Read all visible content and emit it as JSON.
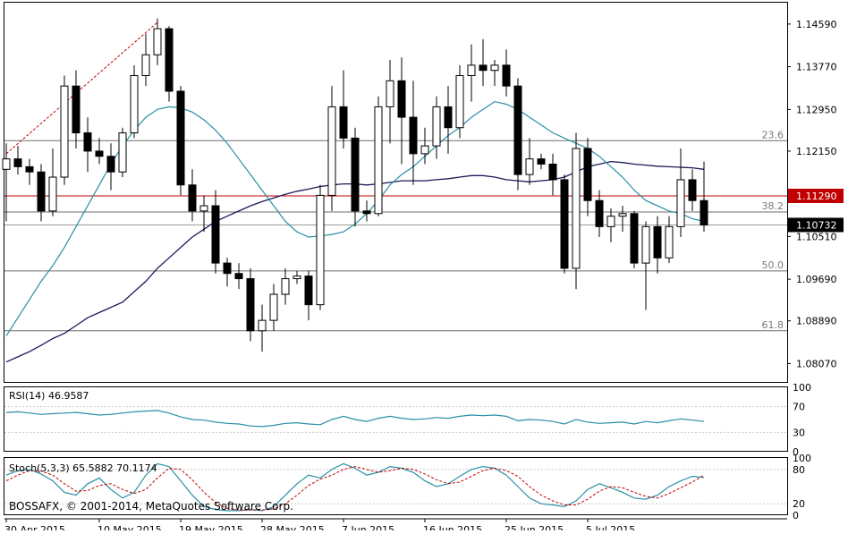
{
  "colors": {
    "background": "#ffffff",
    "frame": "#000000",
    "grid": "#c8c8c8",
    "candle_body": "#000000",
    "candle_bull_fill": "#ffffff",
    "ma_fast": "#2a8fa6",
    "ma_slow": "#1a1a5a",
    "fib_line": "#6d6d6d",
    "price_line": "#c00000",
    "price_box": "#c00000",
    "current_box": "#000000",
    "rsi_line": "#2a8fa6",
    "stoch_main": "#2a8fa6",
    "stoch_signal": "#c00000",
    "trend_line": "#c00000"
  },
  "chart_data": [
    {
      "type": "candlestick",
      "panel": "main",
      "symbol_pair_note": "",
      "ylim": [
        1.077,
        1.15
      ],
      "y_ticks": [
        "1.14590",
        "1.13770",
        "1.12950",
        "1.12150",
        "1.11290",
        "1.10732",
        "1.10510",
        "1.09690",
        "1.08890",
        "1.08070"
      ],
      "y_tick_values": [
        1.1459,
        1.1377,
        1.1295,
        1.1215,
        1.1051,
        1.0969,
        1.0889,
        1.0807
      ],
      "x_ticks": [
        "30 Apr 2015",
        "10 May 2015",
        "19 May 2015",
        "28 May 2015",
        "7 Jun 2015",
        "16 Jun 2015",
        "25 Jun 2015",
        "5 Jul 2015"
      ],
      "x_tick_index": [
        0,
        8,
        15,
        22,
        29,
        36,
        43,
        50
      ],
      "candles": [
        [
          1.118,
          1.123,
          1.108,
          1.12
        ],
        [
          1.12,
          1.1225,
          1.117,
          1.1185
        ],
        [
          1.1185,
          1.12,
          1.115,
          1.1175
        ],
        [
          1.1175,
          1.119,
          1.108,
          1.11
        ],
        [
          1.11,
          1.122,
          1.109,
          1.1165
        ],
        [
          1.1165,
          1.136,
          1.115,
          1.134
        ],
        [
          1.134,
          1.137,
          1.122,
          1.125
        ],
        [
          1.125,
          1.128,
          1.1175,
          1.1215
        ],
        [
          1.1215,
          1.124,
          1.119,
          1.1205
        ],
        [
          1.1205,
          1.123,
          1.114,
          1.1175
        ],
        [
          1.1175,
          1.126,
          1.1165,
          1.125
        ],
        [
          1.125,
          1.138,
          1.124,
          1.136
        ],
        [
          1.136,
          1.144,
          1.134,
          1.14
        ],
        [
          1.14,
          1.147,
          1.138,
          1.145
        ],
        [
          1.145,
          1.1455,
          1.131,
          1.133
        ],
        [
          1.133,
          1.134,
          1.113,
          1.115
        ],
        [
          1.115,
          1.118,
          1.108,
          1.11
        ],
        [
          1.11,
          1.113,
          1.106,
          1.111
        ],
        [
          1.111,
          1.114,
          1.098,
          1.1
        ],
        [
          1.1,
          1.101,
          1.0955,
          1.098
        ],
        [
          1.098,
          1.1,
          1.095,
          1.097
        ],
        [
          1.097,
          1.099,
          1.085,
          1.087
        ],
        [
          1.087,
          1.092,
          1.083,
          1.089
        ],
        [
          1.089,
          1.096,
          1.087,
          1.094
        ],
        [
          1.094,
          1.099,
          1.092,
          1.097
        ],
        [
          1.097,
          1.0985,
          1.096,
          1.0975
        ],
        [
          1.0975,
          1.0985,
          1.089,
          1.092
        ],
        [
          1.092,
          1.115,
          1.091,
          1.113
        ],
        [
          1.113,
          1.134,
          1.11,
          1.13
        ],
        [
          1.13,
          1.137,
          1.122,
          1.124
        ],
        [
          1.124,
          1.126,
          1.107,
          1.11
        ],
        [
          1.11,
          1.112,
          1.108,
          1.1095
        ],
        [
          1.1095,
          1.132,
          1.109,
          1.13
        ],
        [
          1.13,
          1.139,
          1.123,
          1.135
        ],
        [
          1.135,
          1.1395,
          1.119,
          1.128
        ],
        [
          1.128,
          1.135,
          1.115,
          1.121
        ],
        [
          1.121,
          1.126,
          1.119,
          1.1225
        ],
        [
          1.1225,
          1.132,
          1.12,
          1.13
        ],
        [
          1.13,
          1.134,
          1.121,
          1.126
        ],
        [
          1.126,
          1.138,
          1.124,
          1.136
        ],
        [
          1.136,
          1.142,
          1.131,
          1.138
        ],
        [
          1.138,
          1.143,
          1.134,
          1.137
        ],
        [
          1.137,
          1.139,
          1.134,
          1.138
        ],
        [
          1.138,
          1.141,
          1.132,
          1.134
        ],
        [
          1.134,
          1.1355,
          1.114,
          1.117
        ],
        [
          1.117,
          1.124,
          1.115,
          1.12
        ],
        [
          1.12,
          1.121,
          1.118,
          1.119
        ],
        [
          1.119,
          1.121,
          1.113,
          1.116
        ],
        [
          1.116,
          1.117,
          1.098,
          1.099
        ],
        [
          1.099,
          1.125,
          1.095,
          1.122
        ],
        [
          1.122,
          1.124,
          1.109,
          1.112
        ],
        [
          1.112,
          1.114,
          1.105,
          1.107
        ],
        [
          1.107,
          1.1105,
          1.104,
          1.109
        ],
        [
          1.109,
          1.111,
          1.106,
          1.1095
        ],
        [
          1.1095,
          1.11,
          1.099,
          1.1
        ],
        [
          1.1,
          1.108,
          1.091,
          1.107
        ],
        [
          1.107,
          1.109,
          1.098,
          1.101
        ],
        [
          1.101,
          1.109,
          1.1,
          1.107
        ],
        [
          1.107,
          1.122,
          1.105,
          1.116
        ],
        [
          1.116,
          1.118,
          1.11,
          1.112
        ],
        [
          1.112,
          1.1195,
          1.106,
          1.1073
        ]
      ],
      "ma_fast": [
        1.086,
        1.0895,
        1.093,
        1.0965,
        1.0995,
        1.103,
        1.107,
        1.111,
        1.115,
        1.119,
        1.1225,
        1.1255,
        1.128,
        1.1295,
        1.13,
        1.1298,
        1.129,
        1.1275,
        1.1255,
        1.123,
        1.12,
        1.117,
        1.114,
        1.111,
        1.108,
        1.106,
        1.105,
        1.1052,
        1.1055,
        1.106,
        1.1075,
        1.1095,
        1.112,
        1.115,
        1.117,
        1.1185,
        1.1205,
        1.1225,
        1.1245,
        1.126,
        1.128,
        1.1295,
        1.131,
        1.1305,
        1.1295,
        1.128,
        1.1265,
        1.125,
        1.124,
        1.123,
        1.122,
        1.1205,
        1.1185,
        1.1165,
        1.114,
        1.112,
        1.111,
        1.11,
        1.1095,
        1.1085,
        1.108
      ],
      "ma_slow": [
        1.081,
        1.082,
        1.083,
        1.0842,
        1.0855,
        1.0865,
        1.088,
        1.0895,
        1.0905,
        1.0915,
        1.0925,
        1.0945,
        1.0965,
        1.099,
        1.101,
        1.103,
        1.105,
        1.1065,
        1.108,
        1.109,
        1.11,
        1.111,
        1.1118,
        1.1125,
        1.1132,
        1.1138,
        1.1142,
        1.1147,
        1.115,
        1.1152,
        1.1152,
        1.115,
        1.1152,
        1.1155,
        1.1158,
        1.1158,
        1.1158,
        1.116,
        1.1162,
        1.1165,
        1.1168,
        1.1168,
        1.1165,
        1.116,
        1.1158,
        1.1156,
        1.1158,
        1.116,
        1.1165,
        1.1175,
        1.1185,
        1.119,
        1.1195,
        1.1193,
        1.119,
        1.1188,
        1.1186,
        1.1185,
        1.1184,
        1.1183,
        1.118
      ],
      "trend_line": [
        [
          0,
          1.121
        ],
        [
          13,
          1.1462
        ]
      ],
      "fib_levels": [
        {
          "label": "23.6",
          "value": 1.1235
        },
        {
          "label": "38.2",
          "value": 1.1098
        },
        {
          "label": "50.0",
          "value": 1.0985
        },
        {
          "label": "61.8",
          "value": 1.087
        }
      ],
      "price_line": {
        "label": "1.11290",
        "value": 1.1129
      },
      "current_price": {
        "label": "1.10732",
        "value": 1.10732
      }
    },
    {
      "type": "line",
      "panel": "rsi",
      "title": "RSI(14) 46.9587",
      "ylim": [
        0,
        100
      ],
      "y_ticks": [
        "100",
        "70",
        "30",
        "0"
      ],
      "y_tick_values": [
        100,
        70,
        30,
        0
      ],
      "levels": [
        70,
        30
      ],
      "values": [
        61,
        62,
        60,
        58,
        59,
        60,
        61,
        59,
        57,
        58,
        60,
        62,
        63,
        64,
        60,
        54,
        50,
        49,
        46,
        44,
        43,
        40,
        39,
        41,
        44,
        45,
        43,
        42,
        50,
        55,
        50,
        47,
        52,
        55,
        52,
        50,
        51,
        53,
        52,
        55,
        57,
        56,
        57,
        55,
        48,
        50,
        49,
        47,
        43,
        50,
        46,
        44,
        45,
        46,
        43,
        47,
        45,
        48,
        51,
        49,
        47
      ]
    },
    {
      "type": "line",
      "panel": "stoch",
      "title": "Stoch(5,3,3) 65.5882 70.1174",
      "ylim": [
        0,
        100
      ],
      "y_ticks": [
        "100",
        "80",
        "20",
        "0"
      ],
      "y_tick_values": [
        100,
        80,
        20,
        0
      ],
      "levels": [
        80,
        20
      ],
      "series": [
        {
          "values": [
            70,
            78,
            80,
            72,
            60,
            40,
            35,
            55,
            65,
            45,
            30,
            40,
            70,
            90,
            85,
            60,
            35,
            15,
            10,
            8,
            8,
            10,
            8,
            15,
            35,
            55,
            70,
            65,
            80,
            90,
            82,
            70,
            75,
            85,
            82,
            75,
            60,
            50,
            55,
            68,
            80,
            85,
            82,
            70,
            50,
            30,
            20,
            18,
            15,
            25,
            45,
            55,
            48,
            40,
            30,
            28,
            35,
            50,
            60,
            68,
            66
          ]
        },
        {
          "values": [
            60,
            70,
            78,
            77,
            70,
            55,
            42,
            43,
            52,
            55,
            45,
            38,
            45,
            65,
            82,
            80,
            62,
            40,
            22,
            12,
            9,
            9,
            9,
            11,
            20,
            35,
            52,
            63,
            70,
            80,
            85,
            80,
            75,
            78,
            82,
            80,
            72,
            62,
            55,
            58,
            68,
            78,
            82,
            78,
            68,
            50,
            35,
            25,
            18,
            18,
            28,
            42,
            50,
            48,
            40,
            33,
            30,
            38,
            48,
            58,
            70
          ]
        }
      ]
    }
  ],
  "watermark": "BOSSAFX, © 2001-2014, MetaQuotes Software Corp."
}
